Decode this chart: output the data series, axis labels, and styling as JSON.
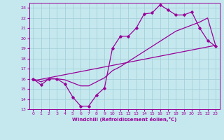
{
  "xlabel": "Windchill (Refroidissement éolien,°C)",
  "xlim": [
    -0.5,
    23.5
  ],
  "ylim": [
    13,
    23.5
  ],
  "xticks": [
    0,
    1,
    2,
    3,
    4,
    5,
    6,
    7,
    8,
    9,
    10,
    11,
    12,
    13,
    14,
    15,
    16,
    17,
    18,
    19,
    20,
    21,
    22,
    23
  ],
  "yticks": [
    13,
    14,
    15,
    16,
    17,
    18,
    19,
    20,
    21,
    22,
    23
  ],
  "background_color": "#c5e8ee",
  "grid_color": "#9fccd6",
  "line_color": "#990099",
  "line1_x": [
    0,
    1,
    2,
    3,
    4,
    5,
    6,
    7,
    8,
    9,
    10,
    11,
    12,
    13,
    14,
    15,
    16,
    17,
    18,
    19,
    20,
    21,
    22,
    23
  ],
  "line1_y": [
    16.0,
    15.4,
    16.0,
    16.0,
    15.5,
    14.2,
    13.3,
    13.3,
    14.4,
    15.1,
    19.0,
    20.2,
    20.2,
    21.0,
    22.4,
    22.5,
    23.3,
    22.8,
    22.3,
    22.3,
    22.6,
    21.0,
    19.8,
    19.2
  ],
  "line2_x": [
    0,
    1,
    2,
    3,
    4,
    5,
    6,
    7,
    8,
    9,
    10,
    11,
    12,
    13,
    14,
    15,
    16,
    17,
    18,
    19,
    20,
    21,
    22,
    23
  ],
  "line2_y": [
    16.0,
    15.7,
    16.0,
    16.0,
    15.9,
    15.6,
    15.3,
    15.3,
    15.7,
    16.1,
    16.8,
    17.2,
    17.7,
    18.2,
    18.7,
    19.2,
    19.7,
    20.2,
    20.7,
    21.0,
    21.3,
    21.6,
    22.0,
    19.3
  ],
  "line3_x": [
    0,
    23
  ],
  "line3_y": [
    15.8,
    19.3
  ]
}
